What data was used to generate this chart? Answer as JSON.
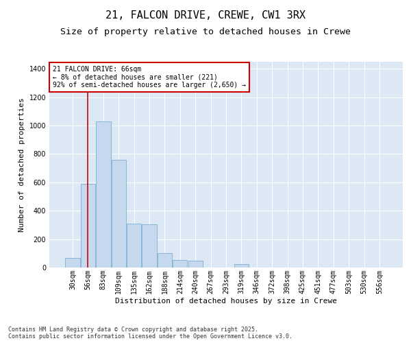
{
  "title1": "21, FALCON DRIVE, CREWE, CW1 3RX",
  "title2": "Size of property relative to detached houses in Crewe",
  "xlabel": "Distribution of detached houses by size in Crewe",
  "ylabel": "Number of detached properties",
  "bar_color": "#c5d8ed",
  "bar_edge_color": "#7bafd4",
  "background_color": "#dce9f5",
  "vline_color": "#cc0000",
  "annotation_text": "21 FALCON DRIVE: 66sqm\n← 8% of detached houses are smaller (221)\n92% of semi-detached houses are larger (2,650) →",
  "vline_x": 1,
  "categories": [
    "30sqm",
    "56sqm",
    "83sqm",
    "109sqm",
    "135sqm",
    "162sqm",
    "188sqm",
    "214sqm",
    "240sqm",
    "267sqm",
    "293sqm",
    "319sqm",
    "346sqm",
    "372sqm",
    "398sqm",
    "425sqm",
    "451sqm",
    "477sqm",
    "503sqm",
    "530sqm",
    "556sqm"
  ],
  "values": [
    68,
    590,
    1030,
    760,
    310,
    305,
    100,
    52,
    48,
    0,
    0,
    22,
    0,
    0,
    0,
    0,
    0,
    0,
    0,
    0,
    0
  ],
  "ylim": [
    0,
    1450
  ],
  "yticks": [
    0,
    200,
    400,
    600,
    800,
    1000,
    1200,
    1400
  ],
  "footnote": "Contains HM Land Registry data © Crown copyright and database right 2025.\nContains public sector information licensed under the Open Government Licence v3.0.",
  "title_fontsize": 11,
  "subtitle_fontsize": 9.5,
  "axis_label_fontsize": 8,
  "tick_fontsize": 7,
  "footnote_fontsize": 6
}
